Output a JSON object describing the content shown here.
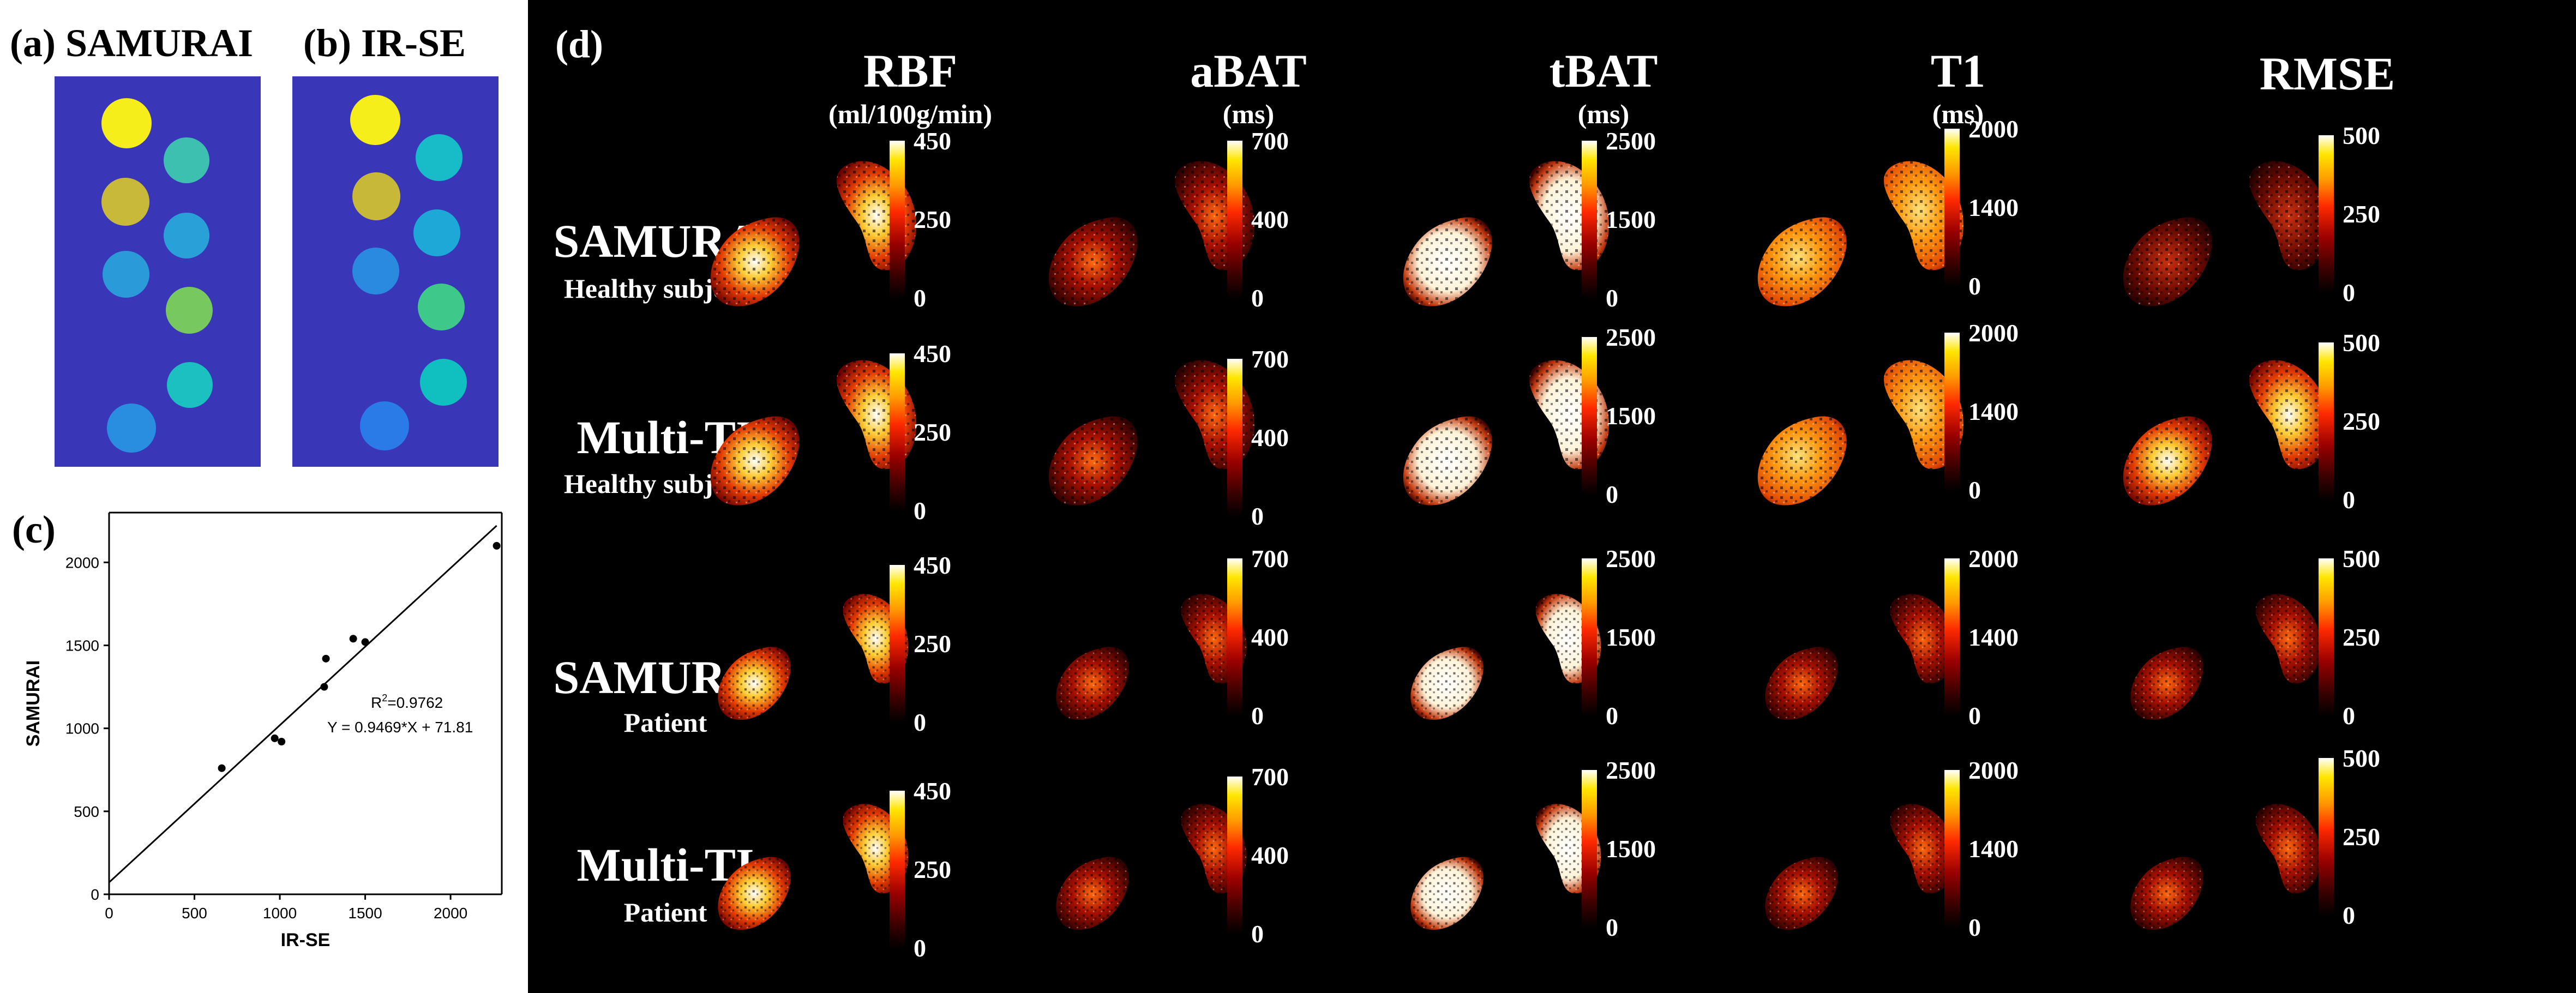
{
  "panels": {
    "a_label": "(a) SAMURAI",
    "b_label": "(b) IR-SE",
    "c_label": "(c)",
    "d_label": "(d)"
  },
  "phantom_a": [
    {
      "color": "#f5ee1a"
    },
    {
      "color": "#3ec0b0"
    },
    {
      "color": "#c9b93a"
    },
    {
      "color": "#2aa0d8"
    },
    {
      "color": "#2a9ad8"
    },
    {
      "color": "#78c860"
    },
    {
      "color": "#1cc0c0"
    },
    {
      "color": "#2a8ee0"
    }
  ],
  "phantom_b": [
    {
      "color": "#f5ee1a"
    },
    {
      "color": "#18bcc8"
    },
    {
      "color": "#c8b83a"
    },
    {
      "color": "#1ea8d8"
    },
    {
      "color": "#2a8ae0"
    },
    {
      "color": "#3ec88a"
    },
    {
      "color": "#10c0c0"
    },
    {
      "color": "#2a7ae8"
    }
  ],
  "scatter": {
    "ylabel": "SAMURAI",
    "xlabel": "IR-SE",
    "r2_prefix": "R",
    "r2_sup": "2",
    "r2_value": "=0.9762",
    "equation": "Y = 0.9469*X + 71.81",
    "x_ticks": [
      "0",
      "500",
      "1000",
      "1500",
      "2000"
    ],
    "y_ticks": [
      "0",
      "500",
      "1000",
      "1500",
      "2000"
    ]
  },
  "chart_data": {
    "type": "scatter",
    "title": "",
    "xlabel": "IR-SE",
    "ylabel": "SAMURAI",
    "xlim": [
      0,
      2300
    ],
    "ylim": [
      0,
      2300
    ],
    "x": [
      660,
      970,
      1010,
      1260,
      1270,
      1430,
      1500,
      2270
    ],
    "y": [
      760,
      940,
      920,
      1250,
      1420,
      1540,
      1520,
      2100
    ],
    "fit": {
      "slope": 0.9469,
      "intercept": 71.81,
      "r2": 0.9762
    }
  },
  "columns": [
    {
      "title": "RBF",
      "unit": "(ml/100g/min)"
    },
    {
      "title": "aBAT",
      "unit": "(ms)"
    },
    {
      "title": "tBAT",
      "unit": "(ms)"
    },
    {
      "title": "T1",
      "unit": "(ms)"
    },
    {
      "title": "RMSE",
      "unit": ""
    }
  ],
  "rows": [
    {
      "title": "SAMURAI",
      "subtitle": "Healthy subject 1"
    },
    {
      "title": "Multi-TI",
      "subtitle": "Healthy subject 1"
    },
    {
      "title": "SAMURAI",
      "subtitle": "Patient"
    },
    {
      "title": "Multi-TI",
      "subtitle": "Patient"
    }
  ],
  "colorbars": [
    {
      "top": "450",
      "mid": "250",
      "bottom": "0"
    },
    {
      "top": "700",
      "mid": "400",
      "bottom": "0"
    },
    {
      "top": "2500",
      "mid": "1500",
      "bottom": "0"
    },
    {
      "top": "2000",
      "mid": "1400",
      "bottom": "0"
    },
    {
      "top": "500",
      "mid": "250",
      "bottom": "0"
    }
  ]
}
